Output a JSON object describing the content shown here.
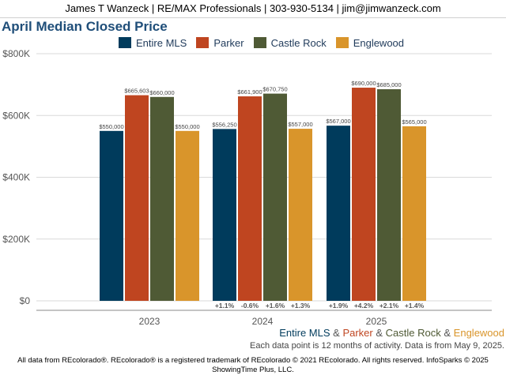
{
  "header": {
    "text": "James T Wanzeck | RE/MAX Professionals | 303-930-5134 | jim@jimwanzeck.com"
  },
  "colors": {
    "entire_mls": "#003b5c",
    "parker": "#bf4520",
    "castle_rock": "#4f5a35",
    "englewood": "#d9952b"
  },
  "series_key": {
    "entire_mls": "Entire MLS",
    "amp1": "&",
    "parker": "Parker",
    "amp2": "&",
    "castle_rock": "Castle Rock",
    "amp3": "&",
    "englewood": "Englewood"
  },
  "note": "Each data point is 12 months of activity. Data is from May 9, 2025.",
  "footer": {
    "line1": "All data from REcolorado®. REcolorado® is a registered trademark of REcolorado © 2021 REcolorado. All rights reserved. InfoSparks © 2025",
    "line2": "ShowingTime Plus, LLC."
  },
  "chart_data": {
    "type": "bar",
    "title": "April Median Closed Price",
    "categories": [
      "2023",
      "2024",
      "2025"
    ],
    "ylim": [
      0,
      800000
    ],
    "yticks": [
      0,
      200000,
      400000,
      600000,
      800000
    ],
    "ytick_labels": [
      "$0",
      "$200K",
      "$400K",
      "$600K",
      "$800K"
    ],
    "grid": true,
    "legend": "top",
    "series": [
      {
        "name": "Entire MLS",
        "color": "#003b5c",
        "values": [
          550000,
          556250,
          567000
        ],
        "labels": [
          "$550,000",
          "$556,250",
          "$567,000"
        ],
        "changes": [
          "",
          "+1.1%",
          "+1.9%"
        ]
      },
      {
        "name": "Parker",
        "color": "#bf4520",
        "values": [
          665603,
          661900,
          690000
        ],
        "labels": [
          "$665,603",
          "$661,900",
          "$690,000"
        ],
        "changes": [
          "",
          "-0.6%",
          "+4.2%"
        ]
      },
      {
        "name": "Castle Rock",
        "color": "#4f5a35",
        "values": [
          660000,
          670750,
          685000
        ],
        "labels": [
          "$660,000",
          "$670,750",
          "$685,000"
        ],
        "changes": [
          "",
          "+1.6%",
          "+2.1%"
        ]
      },
      {
        "name": "Englewood",
        "color": "#d9952b",
        "values": [
          550000,
          557000,
          565000
        ],
        "labels": [
          "$550,000",
          "$557,000",
          "$565,000"
        ],
        "changes": [
          "",
          "+1.3%",
          "+1.4%"
        ]
      }
    ]
  }
}
